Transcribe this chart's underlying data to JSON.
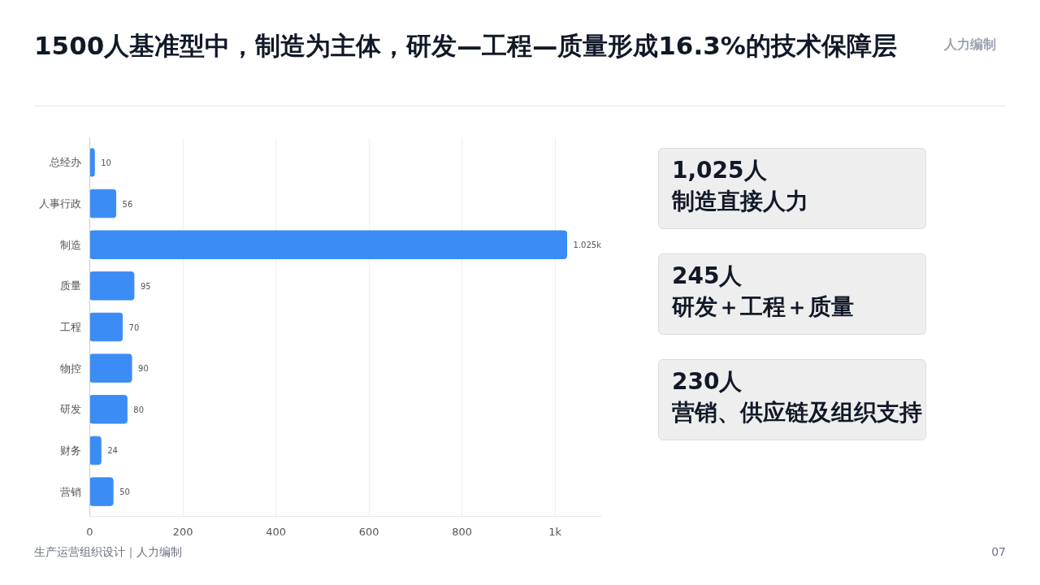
{
  "chart_data": [
    {
      "type": "bar",
      "orientation": "horizontal",
      "title": "1500人基准型中，制造为主体，研发—工程—质量形成16.3%的技术保障层",
      "categories": [
        "总经办",
        "人事行政",
        "制造",
        "质量",
        "工程",
        "物控",
        "研发",
        "财务",
        "营销"
      ],
      "values": [
        10,
        56,
        1025,
        95,
        70,
        90,
        80,
        24,
        50
      ],
      "value_labels": [
        "10",
        "56",
        "1.025k",
        "95",
        "70",
        "90",
        "80",
        "24",
        "50"
      ],
      "color": "#3b8cf5",
      "xlim": [
        0,
        1100
      ],
      "xticks": [
        0,
        200,
        400,
        600,
        800,
        {
          "value": 1000,
          "label": "1k"
        }
      ],
      "grid": "x",
      "annotations": [
        "人力编制",
        "生产运营组织设计｜人力编制",
        "07"
      ]
    },
    {
      "type": "other",
      "annotations": [
        "1,025人",
        "制造直接人力",
        "245人",
        "研发＋工程＋质量",
        "230人",
        "营销、供应链及组织支持"
      ]
    }
  ]
}
